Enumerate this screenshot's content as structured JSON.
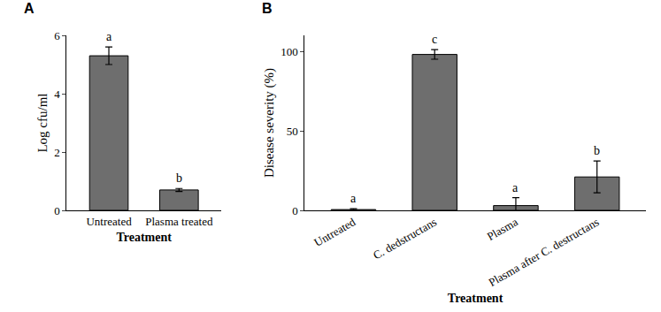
{
  "chart_data": [
    {
      "type": "bar",
      "panel": "A",
      "categories": [
        "Untreated",
        "Plasma treated"
      ],
      "values": [
        5.3,
        0.7
      ],
      "error": [
        0.3,
        0.05
      ],
      "significance_letters": [
        "a",
        "b"
      ],
      "color": "#6e6e6e",
      "x_label": "Treatment",
      "y_label": "Log cfu/ml",
      "ylim": [
        0,
        6
      ],
      "yticks": [
        0,
        2,
        4,
        6
      ],
      "grid": false
    },
    {
      "type": "bar",
      "panel": "B",
      "categories": [
        "Untreated",
        "C. dedstructans",
        "Plasma",
        "Plasma after C. destructans"
      ],
      "values": [
        0.5,
        98,
        3,
        21
      ],
      "error": [
        0.5,
        3,
        5,
        10
      ],
      "significance_letters": [
        "a",
        "c",
        "a",
        "b"
      ],
      "color": "#6e6e6e",
      "x_label": "Treatment",
      "y_label": "Disease severity (%)",
      "ylim": [
        0,
        110
      ],
      "yticks": [
        0,
        50,
        100
      ],
      "grid": false
    }
  ]
}
